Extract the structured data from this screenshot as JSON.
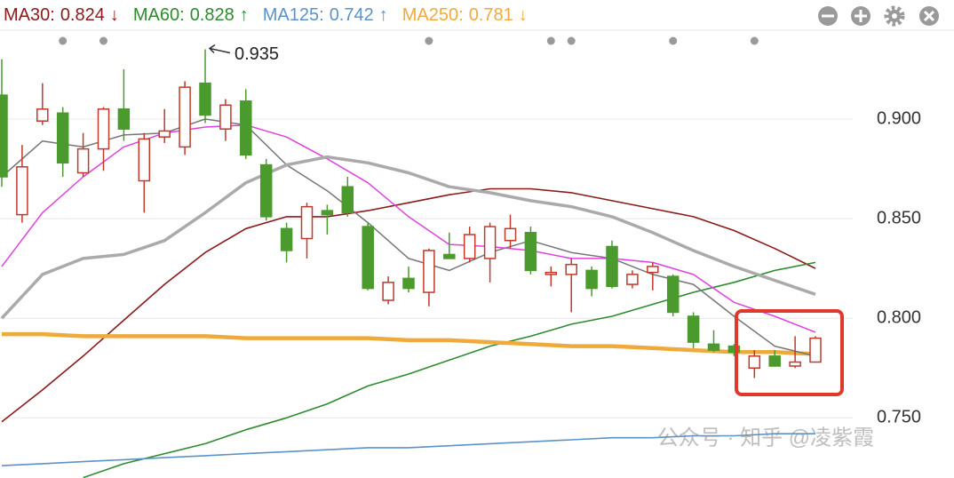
{
  "chart_data": {
    "type": "candlestick",
    "categories": [
      null,
      null,
      null,
      null,
      null,
      null,
      null,
      null,
      null,
      null,
      null,
      null,
      null,
      null,
      null,
      null,
      null,
      null,
      null,
      null,
      null,
      null,
      null,
      null,
      null,
      null,
      null,
      null,
      null,
      null,
      null,
      null,
      null,
      null,
      null,
      null,
      null,
      null,
      null,
      null,
      null
    ],
    "open": [
      0.912,
      0.852,
      0.899,
      0.903,
      0.873,
      0.885,
      0.905,
      0.869,
      0.891,
      0.886,
      0.918,
      0.895,
      0.909,
      0.877,
      0.845,
      0.84,
      0.854,
      0.866,
      0.846,
      0.809,
      0.82,
      0.813,
      0.832,
      0.83,
      0.83,
      0.839,
      0.843,
      0.822,
      0.822,
      0.824,
      0.836,
      0.817,
      0.823,
      0.821,
      0.801,
      0.787,
      0.786,
      0.775,
      0.781,
      0.776,
      0.778
    ],
    "high": [
      0.93,
      0.887,
      0.918,
      0.906,
      0.893,
      0.906,
      0.925,
      0.893,
      0.905,
      0.919,
      0.935,
      0.91,
      0.915,
      0.88,
      0.848,
      0.858,
      0.857,
      0.871,
      0.848,
      0.821,
      0.826,
      0.835,
      0.843,
      0.846,
      0.848,
      0.852,
      0.846,
      0.826,
      0.83,
      0.826,
      0.839,
      0.824,
      0.828,
      0.822,
      0.803,
      0.794,
      0.787,
      0.784,
      0.784,
      0.791,
      0.791
    ],
    "low": [
      0.866,
      0.848,
      0.897,
      0.871,
      0.871,
      0.874,
      0.889,
      0.853,
      0.888,
      0.882,
      0.898,
      0.889,
      0.88,
      0.849,
      0.828,
      0.83,
      0.842,
      0.851,
      0.814,
      0.807,
      0.813,
      0.806,
      0.83,
      0.828,
      0.818,
      0.835,
      0.822,
      0.816,
      0.803,
      0.811,
      0.815,
      0.815,
      0.814,
      0.801,
      0.785,
      0.783,
      0.781,
      0.77,
      0.776,
      0.775,
      0.778
    ],
    "close": [
      0.871,
      0.876,
      0.905,
      0.878,
      0.885,
      0.905,
      0.895,
      0.89,
      0.894,
      0.916,
      0.902,
      0.907,
      0.882,
      0.851,
      0.834,
      0.856,
      0.852,
      0.853,
      0.815,
      0.818,
      0.815,
      0.834,
      0.83,
      0.842,
      0.846,
      0.845,
      0.824,
      0.823,
      0.827,
      0.815,
      0.816,
      0.822,
      0.826,
      0.803,
      0.788,
      0.784,
      0.783,
      0.781,
      0.776,
      0.778,
      0.79
    ],
    "up_color": "#c0392b",
    "down_color": "#4a9a2e",
    "series": [
      {
        "name": "MA30",
        "last_value": 0.824,
        "trend": "↓",
        "color": "#8b1a1a",
        "line_width": 1.6,
        "x": [
          0,
          2,
          4,
          6,
          8,
          10,
          12,
          14,
          16,
          18,
          20,
          22,
          24,
          26,
          28,
          30,
          32,
          34,
          36,
          38,
          40
        ],
        "values": [
          0.748,
          0.764,
          0.781,
          0.799,
          0.817,
          0.833,
          0.845,
          0.851,
          0.851,
          0.854,
          0.858,
          0.862,
          0.865,
          0.865,
          0.863,
          0.859,
          0.855,
          0.851,
          0.844,
          0.835,
          0.825
        ]
      },
      {
        "name": "MA60",
        "last_value": 0.828,
        "trend": "↑",
        "color": "#2e8b2e",
        "line_width": 1.6,
        "x": [
          0,
          2,
          4,
          6,
          8,
          10,
          12,
          14,
          16,
          18,
          20,
          22,
          24,
          26,
          28,
          30,
          32,
          34,
          36,
          38,
          40
        ],
        "values": [
          null,
          null,
          0.72,
          0.727,
          0.732,
          0.737,
          0.744,
          0.75,
          0.757,
          0.766,
          0.772,
          0.779,
          0.786,
          0.791,
          0.797,
          0.801,
          0.807,
          0.813,
          0.818,
          0.824,
          0.828
        ]
      },
      {
        "name": "MA125",
        "last_value": 0.742,
        "trend": "↑",
        "color": "#5b93c9",
        "line_width": 1.6,
        "x": [
          0,
          2,
          4,
          6,
          8,
          10,
          12,
          14,
          16,
          18,
          20,
          22,
          24,
          26,
          28,
          30,
          32,
          34,
          36,
          38,
          40
        ],
        "values": [
          0.726,
          0.727,
          0.728,
          0.729,
          0.73,
          0.731,
          0.732,
          0.733,
          0.734,
          0.735,
          0.735,
          0.736,
          0.737,
          0.738,
          0.739,
          0.74,
          0.74,
          0.741,
          0.741,
          0.742,
          0.742
        ]
      },
      {
        "name": "MA250",
        "last_value": 0.781,
        "trend": "↓",
        "color": "#f0aa3c",
        "line_width": 4.5,
        "x": [
          0,
          2,
          4,
          6,
          8,
          10,
          12,
          14,
          16,
          18,
          20,
          22,
          24,
          26,
          28,
          30,
          32,
          34,
          36,
          38,
          40
        ],
        "values": [
          0.792,
          0.792,
          0.791,
          0.791,
          0.791,
          0.791,
          0.79,
          0.79,
          0.79,
          0.79,
          0.789,
          0.789,
          0.788,
          0.787,
          0.786,
          0.786,
          0.785,
          0.784,
          0.783,
          0.783,
          0.782
        ]
      },
      {
        "color": "#777777",
        "line_width": 1.5,
        "x": [
          0,
          2,
          4,
          6,
          8,
          10,
          12,
          14,
          16,
          18,
          20,
          22,
          24,
          26,
          28,
          30,
          32,
          34,
          36,
          38,
          40
        ],
        "values": [
          0.871,
          0.889,
          0.886,
          0.892,
          0.893,
          0.9,
          0.897,
          0.877,
          0.864,
          0.848,
          0.83,
          0.824,
          0.833,
          0.839,
          0.833,
          0.83,
          0.822,
          0.817,
          0.801,
          0.786,
          0.781
        ]
      },
      {
        "color": "#e040e0",
        "line_width": 1.5,
        "x": [
          0,
          2,
          4,
          6,
          8,
          10,
          12,
          14,
          16,
          18,
          20,
          22,
          24,
          26,
          28,
          30,
          32,
          34,
          36,
          38,
          40
        ],
        "values": [
          0.826,
          0.853,
          0.871,
          0.886,
          0.893,
          0.896,
          0.897,
          0.891,
          0.88,
          0.868,
          0.851,
          0.837,
          0.836,
          0.834,
          0.83,
          0.83,
          0.828,
          0.822,
          0.808,
          0.801,
          0.793
        ]
      },
      {
        "color": "#aaaaaa",
        "line_width": 3.5,
        "x": [
          0,
          2,
          4,
          6,
          8,
          10,
          12,
          14,
          16,
          18,
          20,
          22,
          24,
          26,
          28,
          30,
          32,
          34,
          36,
          38,
          40
        ],
        "values": [
          0.8,
          0.822,
          0.83,
          0.832,
          0.839,
          0.853,
          0.868,
          0.877,
          0.881,
          0.878,
          0.873,
          0.866,
          0.863,
          0.859,
          0.856,
          0.851,
          0.843,
          0.834,
          0.826,
          0.819,
          0.812
        ]
      }
    ],
    "event_markers": [
      3,
      5,
      21,
      27,
      28,
      33,
      37
    ],
    "high_annotation": {
      "value": 0.935,
      "index": 10
    },
    "ylim": [
      0.7198,
      0.9446
    ],
    "yticks": [
      {
        "value": 0.75,
        "label": "0.750"
      },
      {
        "value": 0.8,
        "label": "0.800"
      },
      {
        "value": 0.85,
        "label": "0.850"
      },
      {
        "value": 0.9,
        "label": "0.900"
      }
    ],
    "grid": true,
    "watermark": "公众号 · 知乎 @凌紫霞"
  }
}
